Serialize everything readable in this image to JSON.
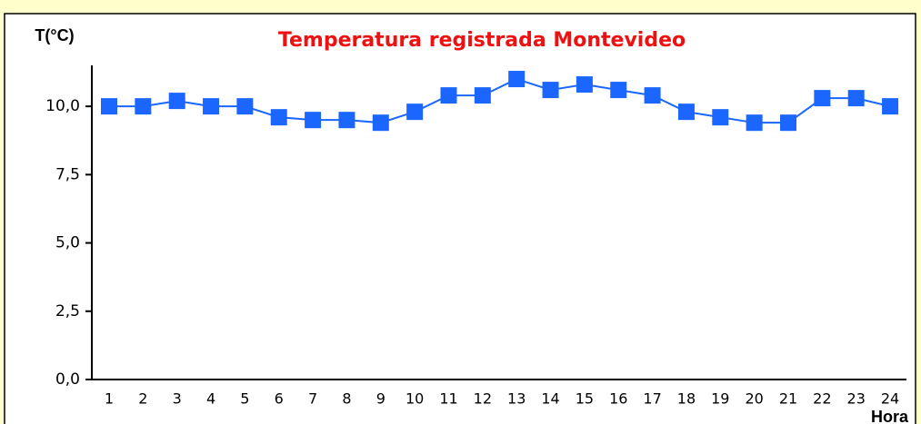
{
  "chart_data": {
    "type": "line",
    "title": "Temperatura registrada Montevideo",
    "y_label": "T(°C)",
    "x_label": "Hora",
    "categories": [
      "1",
      "2",
      "3",
      "4",
      "5",
      "6",
      "7",
      "8",
      "9",
      "10",
      "11",
      "12",
      "13",
      "14",
      "15",
      "16",
      "17",
      "18",
      "19",
      "20",
      "21",
      "22",
      "23",
      "24"
    ],
    "series": [
      {
        "name": "Temperatura",
        "color": "#1a66ff",
        "values": [
          10.0,
          10.0,
          10.2,
          10.0,
          10.0,
          9.6,
          9.5,
          9.5,
          9.4,
          9.8,
          10.4,
          10.4,
          11.0,
          10.6,
          10.8,
          10.6,
          10.4,
          9.8,
          9.6,
          9.4,
          9.4,
          10.3,
          10.3,
          10.0
        ]
      }
    ],
    "ylim": [
      0,
      11.5
    ],
    "yticks": [
      {
        "value": 0,
        "label": "0,0"
      },
      {
        "value": 2.5,
        "label": "2,5"
      },
      {
        "value": 5,
        "label": "5,0"
      },
      {
        "value": 7.5,
        "label": "7,5"
      },
      {
        "value": 10,
        "label": "10,0"
      }
    ],
    "grid": false
  }
}
